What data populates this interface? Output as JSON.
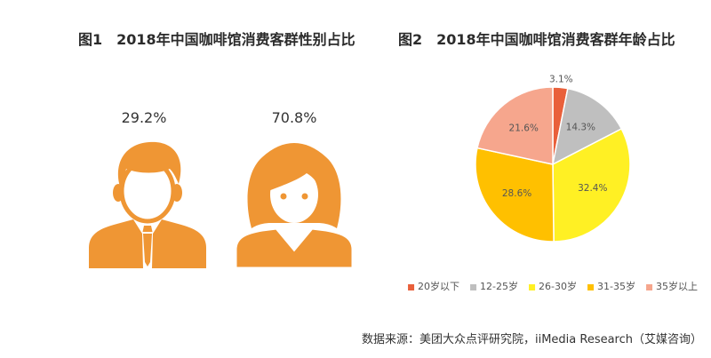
{
  "chart_data": [
    {
      "type": "pie",
      "title": "图1　2018年中国咖啡馆消费客群性别占比",
      "icons": [
        "male-icon",
        "female-icon"
      ],
      "values": [
        29.2,
        70.8
      ],
      "data_labels": [
        "29.2%",
        "70.8%"
      ],
      "color": "#EF9634"
    },
    {
      "type": "pie",
      "title": "图2　2018年中国咖啡馆消费客群年龄占比",
      "categories": [
        "20岁以下",
        "12-25岁",
        "26-30岁",
        "31-35岁",
        "35岁以上"
      ],
      "values": [
        3.1,
        14.3,
        32.4,
        28.6,
        21.6
      ],
      "data_labels": [
        "3.1%",
        "14.3%",
        "32.4%",
        "28.6%",
        "21.6%"
      ],
      "colors": [
        "#E9603B",
        "#BFBFBF",
        "#FFF024",
        "#FFC000",
        "#F6A68D"
      ],
      "legend_position": "bottom"
    }
  ],
  "source": "数据来源：美团大众点评研究院，iiMedia Research（艾媒咨询）"
}
